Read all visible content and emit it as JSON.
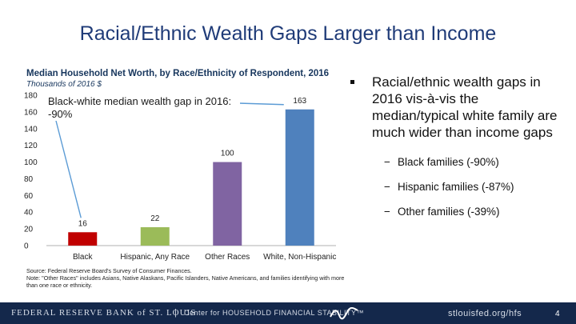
{
  "slide": {
    "title": "Racial/Ethnic Wealth Gaps Larger than Income",
    "page_number": "4"
  },
  "chart_data": {
    "type": "bar",
    "title": "Median Household Net Worth, by Race/Ethnicity of Respondent, 2016",
    "subtitle": "Thousands of 2016 $",
    "categories": [
      "Black",
      "Hispanic, Any Race",
      "Other Races",
      "White, Non-Hispanic"
    ],
    "values": [
      16,
      22,
      100,
      163
    ],
    "colors": [
      "#c00000",
      "#9bbb59",
      "#8064a2",
      "#4f81bd"
    ],
    "ylim": [
      0,
      180
    ],
    "yticks": [
      0,
      20,
      40,
      60,
      80,
      100,
      120,
      140,
      160,
      180
    ],
    "annotation": "Black-white median wealth gap in 2016: -90%",
    "source": "Source: Federal Reserve Board's Survey of Consumer Finances.",
    "note": "Note: \"Other Races\" includes Asians, Native Alaskans, Pacific Islanders, Native Americans, and families identifying with more than one race or ethnicity."
  },
  "bullets": {
    "main": "Racial/ethnic wealth gaps in 2016 vis-à-vis the median/typical white family are much wider than income gaps",
    "dash": "−",
    "subs": [
      "Black families (-90%)",
      "Hispanic families (-87%)",
      "Other families (-39%)"
    ]
  },
  "footer": {
    "logo": "FEDERAL RESERVE BANK of ST. LOUIS",
    "separator": "|",
    "center": "Center for HOUSEHOLD FINANCIAL STABILITY™",
    "url": "stlouisfed.org/hfs"
  }
}
